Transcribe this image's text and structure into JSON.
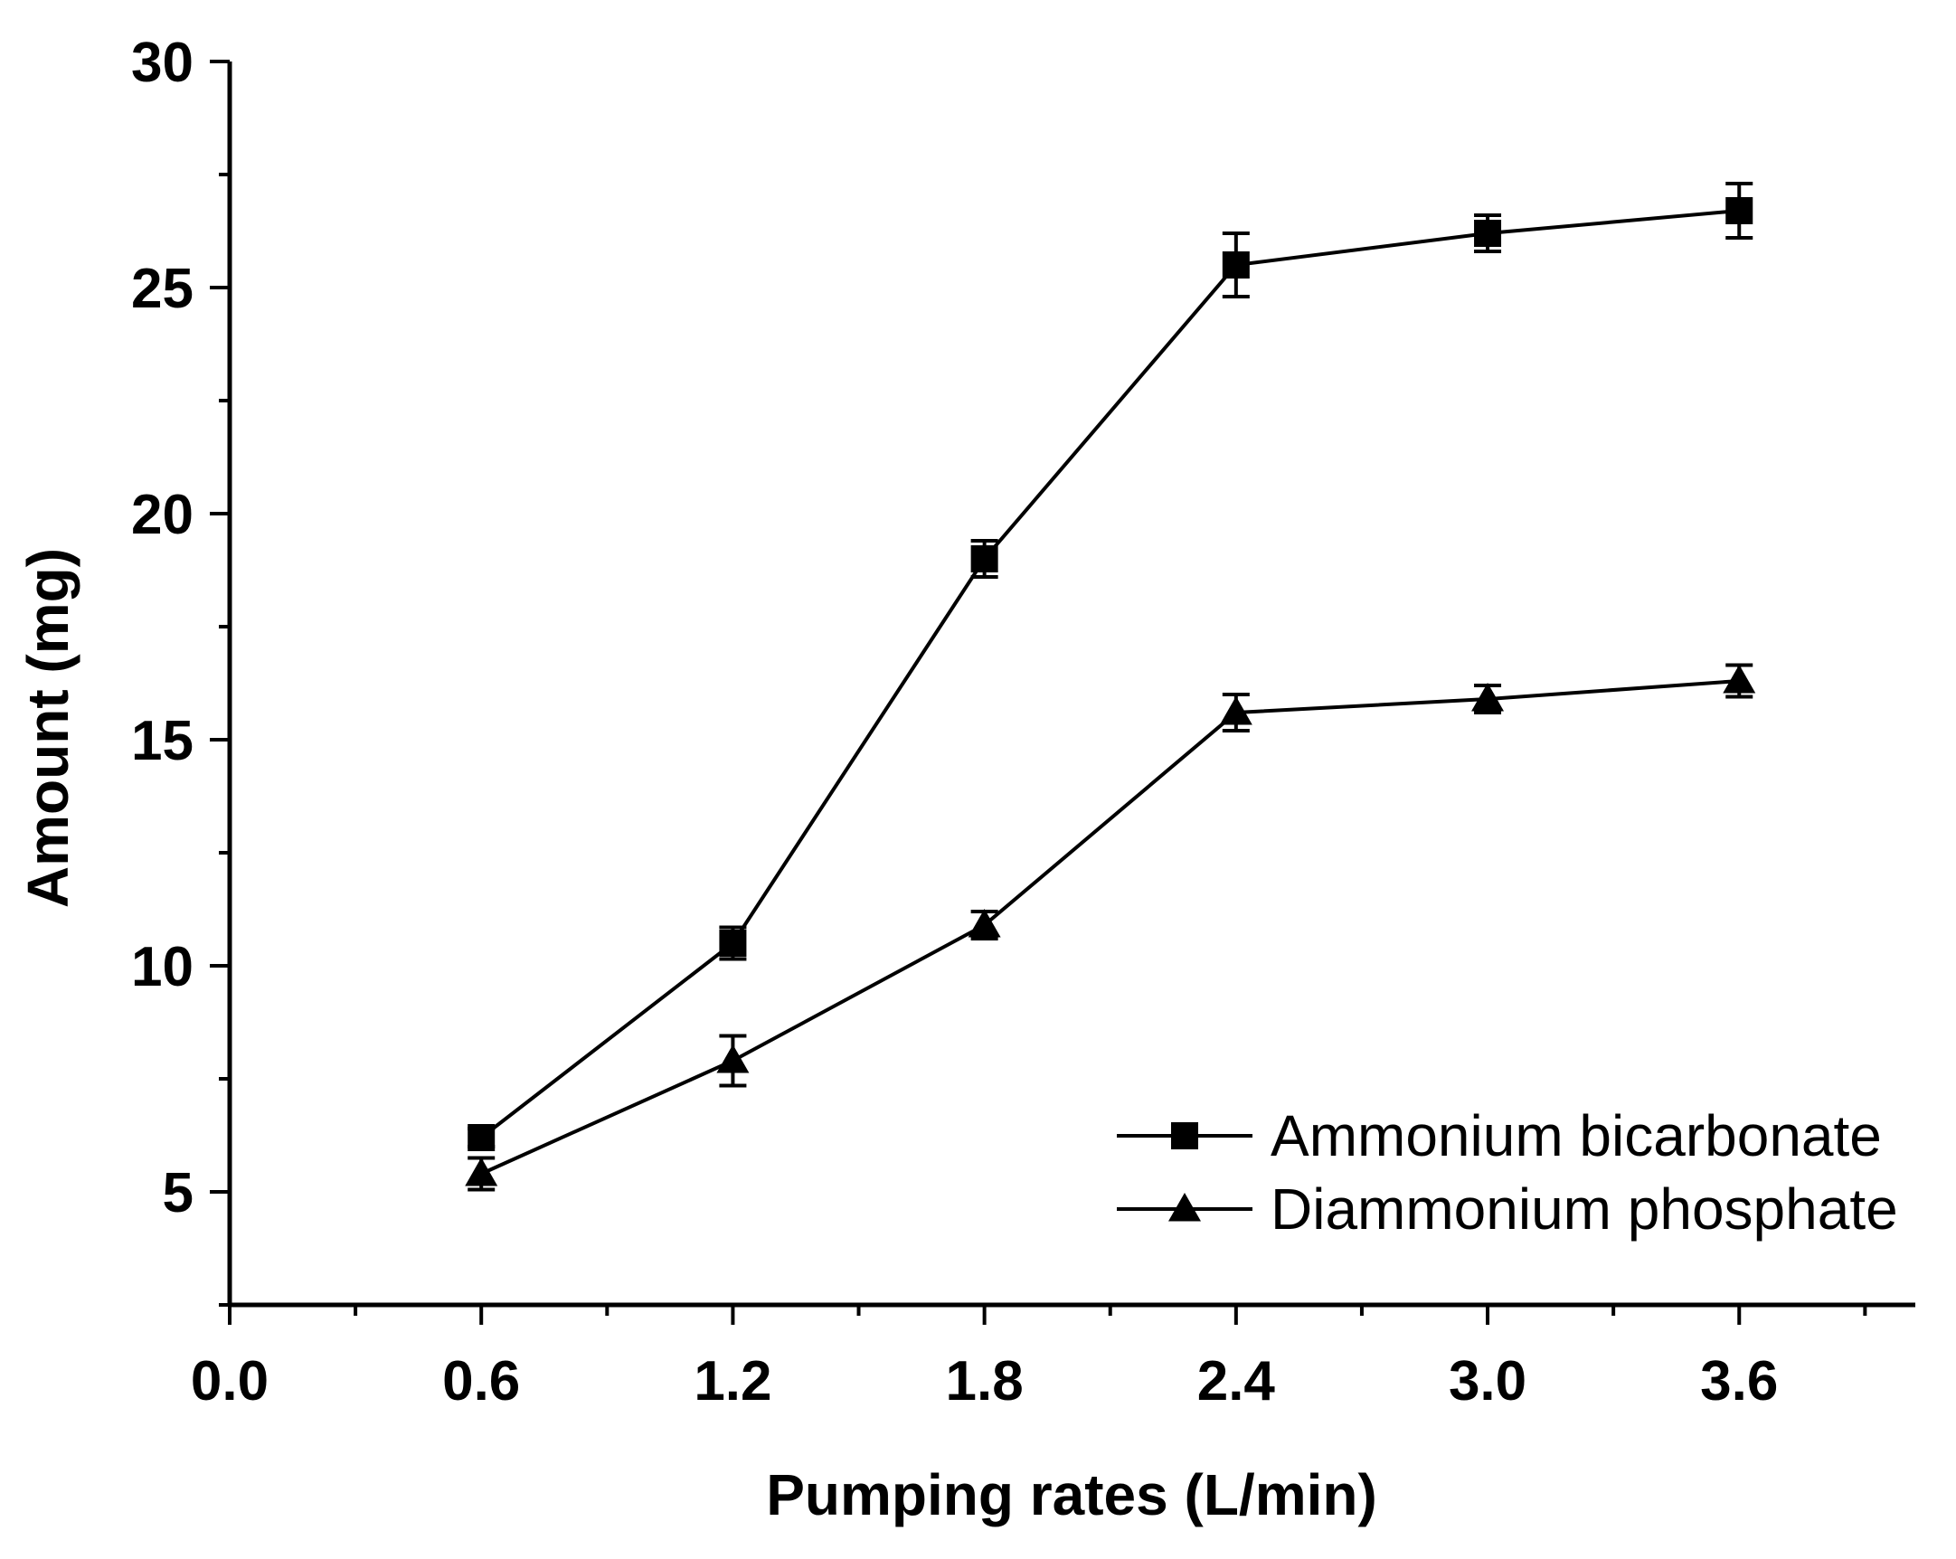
{
  "chart_data": {
    "type": "line",
    "title": "",
    "xlabel": "Pumping rates (L/min)",
    "ylabel": "Amount (mg)",
    "xlim": [
      0.0,
      4.02
    ],
    "ylim": [
      2.5,
      30
    ],
    "xticks": [
      0.0,
      0.6,
      1.2,
      1.8,
      2.4,
      3.0,
      3.6
    ],
    "xtick_labels": [
      "0.0",
      "0.6",
      "1.2",
      "1.8",
      "2.4",
      "3.0",
      "3.6"
    ],
    "yticks": [
      5,
      10,
      15,
      20,
      25,
      30
    ],
    "ytick_labels": [
      "5",
      "10",
      "15",
      "20",
      "25",
      "30"
    ],
    "x": [
      0.6,
      1.2,
      1.8,
      2.4,
      3.0,
      3.6
    ],
    "series": [
      {
        "name": "Ammonium bicarbonate",
        "marker": "square",
        "values": [
          6.2,
          10.5,
          19.0,
          25.5,
          26.2,
          26.7
        ],
        "errors": [
          0.2,
          0.35,
          0.4,
          0.7,
          0.4,
          0.6
        ]
      },
      {
        "name": "Diammonium phosphate",
        "marker": "triangle",
        "values": [
          5.4,
          7.9,
          10.9,
          15.6,
          15.9,
          16.3
        ],
        "errors": [
          0.35,
          0.55,
          0.3,
          0.4,
          0.3,
          0.35
        ]
      }
    ],
    "legend_position": "bottom-right",
    "grid": false
  }
}
